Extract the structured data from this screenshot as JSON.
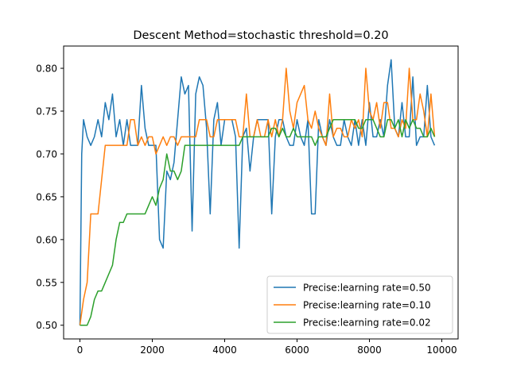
{
  "chart_data": {
    "type": "line",
    "title": "Descent Method=stochastic threshold=0.20",
    "xlabel": "",
    "ylabel": "",
    "xlim": [
      -450,
      10450
    ],
    "ylim": [
      0.484,
      0.826
    ],
    "x_ticks": [
      0,
      2000,
      4000,
      6000,
      8000,
      10000
    ],
    "x_tick_labels": [
      "0",
      "2000",
      "4000",
      "6000",
      "8000",
      "10000"
    ],
    "y_ticks": [
      0.5,
      0.55,
      0.6,
      0.65,
      0.7,
      0.75,
      0.8
    ],
    "y_tick_labels": [
      "0.50",
      "0.55",
      "0.60",
      "0.65",
      "0.70",
      "0.75",
      "0.80"
    ],
    "grid": false,
    "legend_position": "lower-right",
    "series": [
      {
        "name": "Precise:learning rate=0.50",
        "color": "#1f77b4",
        "points": [
          [
            0,
            0.5
          ],
          [
            50,
            0.7
          ],
          [
            100,
            0.74
          ],
          [
            200,
            0.72
          ],
          [
            300,
            0.71
          ],
          [
            400,
            0.72
          ],
          [
            500,
            0.74
          ],
          [
            600,
            0.72
          ],
          [
            700,
            0.76
          ],
          [
            800,
            0.74
          ],
          [
            900,
            0.77
          ],
          [
            1000,
            0.72
          ],
          [
            1100,
            0.74
          ],
          [
            1200,
            0.71
          ],
          [
            1300,
            0.74
          ],
          [
            1400,
            0.71
          ],
          [
            1500,
            0.71
          ],
          [
            1600,
            0.71
          ],
          [
            1700,
            0.78
          ],
          [
            1800,
            0.73
          ],
          [
            1900,
            0.71
          ],
          [
            2000,
            0.71
          ],
          [
            2100,
            0.71
          ],
          [
            2200,
            0.6
          ],
          [
            2300,
            0.59
          ],
          [
            2400,
            0.68
          ],
          [
            2500,
            0.67
          ],
          [
            2600,
            0.69
          ],
          [
            2700,
            0.74
          ],
          [
            2800,
            0.79
          ],
          [
            2900,
            0.77
          ],
          [
            3000,
            0.78
          ],
          [
            3100,
            0.61
          ],
          [
            3200,
            0.77
          ],
          [
            3300,
            0.79
          ],
          [
            3400,
            0.78
          ],
          [
            3500,
            0.73
          ],
          [
            3600,
            0.63
          ],
          [
            3700,
            0.74
          ],
          [
            3800,
            0.76
          ],
          [
            3900,
            0.71
          ],
          [
            4000,
            0.74
          ],
          [
            4100,
            0.74
          ],
          [
            4200,
            0.74
          ],
          [
            4300,
            0.72
          ],
          [
            4400,
            0.59
          ],
          [
            4500,
            0.72
          ],
          [
            4600,
            0.73
          ],
          [
            4700,
            0.68
          ],
          [
            4800,
            0.72
          ],
          [
            4900,
            0.74
          ],
          [
            5000,
            0.74
          ],
          [
            5100,
            0.74
          ],
          [
            5200,
            0.74
          ],
          [
            5300,
            0.63
          ],
          [
            5400,
            0.72
          ],
          [
            5500,
            0.74
          ],
          [
            5600,
            0.74
          ],
          [
            5700,
            0.72
          ],
          [
            5800,
            0.71
          ],
          [
            5900,
            0.71
          ],
          [
            6000,
            0.74
          ],
          [
            6100,
            0.72
          ],
          [
            6200,
            0.71
          ],
          [
            6300,
            0.74
          ],
          [
            6400,
            0.63
          ],
          [
            6500,
            0.63
          ],
          [
            6600,
            0.74
          ],
          [
            6700,
            0.72
          ],
          [
            6800,
            0.71
          ],
          [
            6900,
            0.74
          ],
          [
            7000,
            0.72
          ],
          [
            7100,
            0.71
          ],
          [
            7200,
            0.71
          ],
          [
            7300,
            0.74
          ],
          [
            7400,
            0.72
          ],
          [
            7500,
            0.71
          ],
          [
            7600,
            0.74
          ],
          [
            7700,
            0.71
          ],
          [
            7800,
            0.74
          ],
          [
            7900,
            0.71
          ],
          [
            8000,
            0.76
          ],
          [
            8100,
            0.72
          ],
          [
            8200,
            0.72
          ],
          [
            8300,
            0.74
          ],
          [
            8400,
            0.72
          ],
          [
            8500,
            0.78
          ],
          [
            8600,
            0.81
          ],
          [
            8700,
            0.73
          ],
          [
            8800,
            0.72
          ],
          [
            8900,
            0.76
          ],
          [
            9000,
            0.72
          ],
          [
            9100,
            0.72
          ],
          [
            9200,
            0.79
          ],
          [
            9300,
            0.71
          ],
          [
            9400,
            0.72
          ],
          [
            9500,
            0.72
          ],
          [
            9600,
            0.78
          ],
          [
            9700,
            0.72
          ],
          [
            9800,
            0.71
          ]
        ]
      },
      {
        "name": "Precise:learning rate=0.10",
        "color": "#ff7f0e",
        "points": [
          [
            0,
            0.5
          ],
          [
            100,
            0.53
          ],
          [
            200,
            0.55
          ],
          [
            300,
            0.63
          ],
          [
            400,
            0.63
          ],
          [
            500,
            0.63
          ],
          [
            600,
            0.67
          ],
          [
            700,
            0.71
          ],
          [
            800,
            0.71
          ],
          [
            900,
            0.71
          ],
          [
            1000,
            0.71
          ],
          [
            1100,
            0.71
          ],
          [
            1200,
            0.71
          ],
          [
            1300,
            0.71
          ],
          [
            1400,
            0.74
          ],
          [
            1500,
            0.74
          ],
          [
            1600,
            0.71
          ],
          [
            1700,
            0.72
          ],
          [
            1800,
            0.71
          ],
          [
            1900,
            0.72
          ],
          [
            2000,
            0.72
          ],
          [
            2100,
            0.7
          ],
          [
            2200,
            0.71
          ],
          [
            2300,
            0.72
          ],
          [
            2400,
            0.71
          ],
          [
            2500,
            0.72
          ],
          [
            2600,
            0.72
          ],
          [
            2700,
            0.71
          ],
          [
            2800,
            0.72
          ],
          [
            2900,
            0.72
          ],
          [
            3000,
            0.72
          ],
          [
            3100,
            0.72
          ],
          [
            3200,
            0.72
          ],
          [
            3300,
            0.74
          ],
          [
            3400,
            0.74
          ],
          [
            3500,
            0.74
          ],
          [
            3600,
            0.72
          ],
          [
            3700,
            0.72
          ],
          [
            3800,
            0.74
          ],
          [
            3900,
            0.74
          ],
          [
            4000,
            0.74
          ],
          [
            4100,
            0.74
          ],
          [
            4200,
            0.74
          ],
          [
            4300,
            0.74
          ],
          [
            4400,
            0.72
          ],
          [
            4500,
            0.72
          ],
          [
            4600,
            0.77
          ],
          [
            4700,
            0.72
          ],
          [
            4800,
            0.72
          ],
          [
            4900,
            0.74
          ],
          [
            5000,
            0.72
          ],
          [
            5100,
            0.72
          ],
          [
            5200,
            0.74
          ],
          [
            5300,
            0.72
          ],
          [
            5400,
            0.74
          ],
          [
            5500,
            0.72
          ],
          [
            5600,
            0.74
          ],
          [
            5700,
            0.8
          ],
          [
            5800,
            0.75
          ],
          [
            5900,
            0.73
          ],
          [
            6000,
            0.76
          ],
          [
            6100,
            0.77
          ],
          [
            6200,
            0.78
          ],
          [
            6300,
            0.74
          ],
          [
            6400,
            0.73
          ],
          [
            6500,
            0.75
          ],
          [
            6600,
            0.73
          ],
          [
            6700,
            0.72
          ],
          [
            6800,
            0.71
          ],
          [
            6900,
            0.77
          ],
          [
            7000,
            0.72
          ],
          [
            7100,
            0.73
          ],
          [
            7200,
            0.73
          ],
          [
            7300,
            0.72
          ],
          [
            7400,
            0.72
          ],
          [
            7500,
            0.74
          ],
          [
            7600,
            0.73
          ],
          [
            7700,
            0.74
          ],
          [
            7800,
            0.72
          ],
          [
            7900,
            0.8
          ],
          [
            8000,
            0.75
          ],
          [
            8100,
            0.74
          ],
          [
            8200,
            0.76
          ],
          [
            8300,
            0.73
          ],
          [
            8400,
            0.76
          ],
          [
            8500,
            0.76
          ],
          [
            8600,
            0.73
          ],
          [
            8700,
            0.73
          ],
          [
            8800,
            0.72
          ],
          [
            8900,
            0.74
          ],
          [
            9000,
            0.73
          ],
          [
            9100,
            0.8
          ],
          [
            9200,
            0.74
          ],
          [
            9300,
            0.74
          ],
          [
            9400,
            0.77
          ],
          [
            9500,
            0.75
          ],
          [
            9600,
            0.72
          ],
          [
            9700,
            0.77
          ],
          [
            9800,
            0.72
          ]
        ]
      },
      {
        "name": "Precise:learning rate=0.02",
        "color": "#2ca02c",
        "points": [
          [
            0,
            0.5
          ],
          [
            100,
            0.5
          ],
          [
            200,
            0.5
          ],
          [
            300,
            0.51
          ],
          [
            400,
            0.53
          ],
          [
            500,
            0.54
          ],
          [
            600,
            0.54
          ],
          [
            700,
            0.55
          ],
          [
            800,
            0.56
          ],
          [
            900,
            0.57
          ],
          [
            1000,
            0.6
          ],
          [
            1100,
            0.62
          ],
          [
            1200,
            0.62
          ],
          [
            1300,
            0.63
          ],
          [
            1400,
            0.63
          ],
          [
            1500,
            0.63
          ],
          [
            1600,
            0.63
          ],
          [
            1700,
            0.63
          ],
          [
            1800,
            0.63
          ],
          [
            1900,
            0.64
          ],
          [
            2000,
            0.65
          ],
          [
            2100,
            0.64
          ],
          [
            2200,
            0.66
          ],
          [
            2300,
            0.67
          ],
          [
            2400,
            0.7
          ],
          [
            2500,
            0.68
          ],
          [
            2600,
            0.68
          ],
          [
            2700,
            0.67
          ],
          [
            2800,
            0.68
          ],
          [
            2900,
            0.71
          ],
          [
            3000,
            0.71
          ],
          [
            3100,
            0.71
          ],
          [
            3200,
            0.71
          ],
          [
            3300,
            0.71
          ],
          [
            3400,
            0.71
          ],
          [
            3500,
            0.71
          ],
          [
            3600,
            0.71
          ],
          [
            3700,
            0.71
          ],
          [
            3800,
            0.71
          ],
          [
            3900,
            0.71
          ],
          [
            4000,
            0.71
          ],
          [
            4100,
            0.71
          ],
          [
            4200,
            0.71
          ],
          [
            4300,
            0.71
          ],
          [
            4400,
            0.71
          ],
          [
            4500,
            0.72
          ],
          [
            4600,
            0.72
          ],
          [
            4700,
            0.72
          ],
          [
            4800,
            0.72
          ],
          [
            4900,
            0.72
          ],
          [
            5000,
            0.72
          ],
          [
            5100,
            0.72
          ],
          [
            5200,
            0.72
          ],
          [
            5300,
            0.73
          ],
          [
            5400,
            0.73
          ],
          [
            5500,
            0.72
          ],
          [
            5600,
            0.73
          ],
          [
            5700,
            0.72
          ],
          [
            5800,
            0.72
          ],
          [
            5900,
            0.73
          ],
          [
            6000,
            0.72
          ],
          [
            6100,
            0.72
          ],
          [
            6200,
            0.72
          ],
          [
            6300,
            0.72
          ],
          [
            6400,
            0.72
          ],
          [
            6500,
            0.71
          ],
          [
            6600,
            0.72
          ],
          [
            6700,
            0.72
          ],
          [
            6800,
            0.72
          ],
          [
            6900,
            0.73
          ],
          [
            7000,
            0.74
          ],
          [
            7100,
            0.74
          ],
          [
            7200,
            0.74
          ],
          [
            7300,
            0.74
          ],
          [
            7400,
            0.74
          ],
          [
            7500,
            0.74
          ],
          [
            7600,
            0.74
          ],
          [
            7700,
            0.73
          ],
          [
            7800,
            0.73
          ],
          [
            7900,
            0.74
          ],
          [
            8000,
            0.74
          ],
          [
            8100,
            0.74
          ],
          [
            8200,
            0.73
          ],
          [
            8300,
            0.72
          ],
          [
            8400,
            0.72
          ],
          [
            8500,
            0.74
          ],
          [
            8600,
            0.74
          ],
          [
            8700,
            0.73
          ],
          [
            8800,
            0.74
          ],
          [
            8900,
            0.72
          ],
          [
            9000,
            0.74
          ],
          [
            9100,
            0.73
          ],
          [
            9200,
            0.74
          ],
          [
            9300,
            0.73
          ],
          [
            9400,
            0.73
          ],
          [
            9500,
            0.72
          ],
          [
            9600,
            0.72
          ],
          [
            9700,
            0.73
          ],
          [
            9800,
            0.72
          ]
        ]
      }
    ]
  }
}
